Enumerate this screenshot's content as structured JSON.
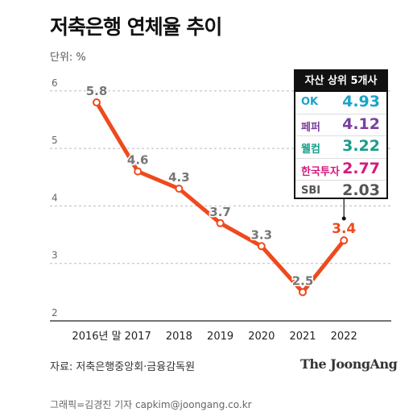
{
  "title": "저축은행 연체율 추이",
  "unit_label": "단위: %",
  "source": "자료: 저축은행중앙회·금융감독원",
  "logo": "The JoongAng",
  "credit": "그래픽=김경진 기자 capkim@joongang.co.kr",
  "legend": {
    "title": "자산 상위 5개사",
    "items": [
      {
        "name": "OK",
        "value": "4.93",
        "color": "#1aa3c8"
      },
      {
        "name": "페퍼",
        "value": "4.12",
        "color": "#7a3fa0"
      },
      {
        "name": "웰컴",
        "value": "3.22",
        "color": "#1a9e8a"
      },
      {
        "name": "한국투자",
        "value": "2.77",
        "color": "#d6197e"
      },
      {
        "name": "SBI",
        "value": "2.03",
        "color": "#555555"
      }
    ]
  },
  "chart_data": {
    "type": "line",
    "categories": [
      "2016년 말",
      "2017",
      "2018",
      "2019",
      "2020",
      "2021",
      "2022"
    ],
    "series": [
      {
        "values": [
          5.8,
          4.6,
          4.3,
          3.7,
          3.3,
          2.5,
          3.4
        ],
        "color": "#ee4a1d"
      }
    ],
    "data_labels": [
      "5.8",
      "4.6",
      "4.3",
      "3.7",
      "3.3",
      "2.5",
      "3.4"
    ],
    "highlight_color": "#ee4a1d",
    "yticks": [
      "6",
      "5",
      "4",
      "3",
      "2"
    ],
    "ylim": [
      2,
      6.3
    ],
    "grid": true
  }
}
